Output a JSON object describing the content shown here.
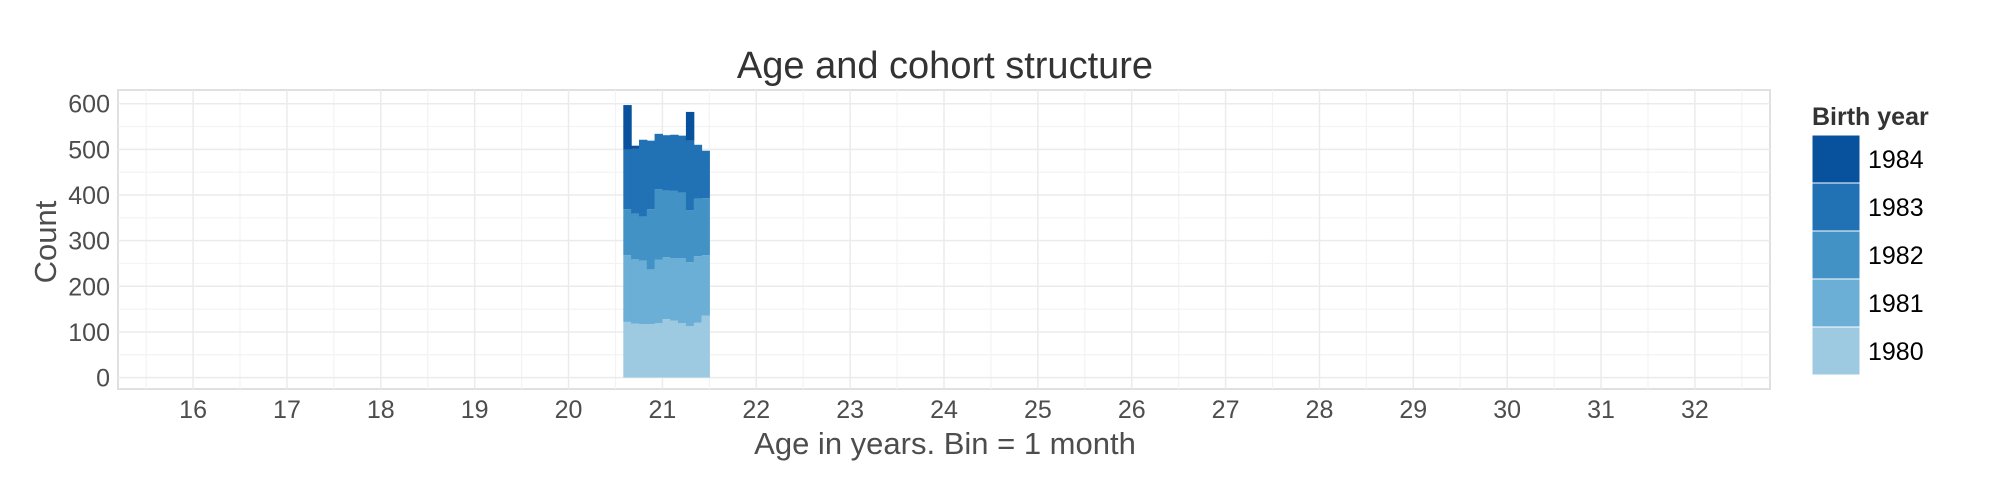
{
  "chart_data": {
    "type": "bar",
    "stacked": true,
    "title": "Age and cohort structure",
    "xlabel": "Age in years. Bin = 1 month",
    "ylabel": "Count",
    "xlim": [
      15.2,
      32.8
    ],
    "ylim": [
      -25,
      630
    ],
    "x_ticks": [
      "16",
      "17",
      "18",
      "19",
      "20",
      "21",
      "22",
      "23",
      "24",
      "25",
      "26",
      "27",
      "28",
      "29",
      "30",
      "31",
      "32"
    ],
    "y_ticks": [
      "0",
      "100",
      "200",
      "300",
      "400",
      "500",
      "600"
    ],
    "grid": true,
    "legend_position": "right",
    "bin_width_years": 0.0833,
    "x": [
      20.625,
      20.708,
      20.792,
      20.875,
      20.958,
      21.042,
      21.125,
      21.208,
      21.292,
      21.375,
      21.458
    ],
    "series": [
      {
        "name": "1980",
        "color": "#9ecae1",
        "values": [
          122,
          118,
          117,
          117,
          119,
          128,
          125,
          119,
          113,
          120,
          136
        ]
      },
      {
        "name": "1981",
        "color": "#6baed6",
        "values": [
          146,
          141,
          139,
          120,
          139,
          136,
          137,
          143,
          140,
          146,
          132
        ]
      },
      {
        "name": "1982",
        "color": "#4292c6",
        "values": [
          101,
          100,
          97,
          132,
          155,
          146,
          147,
          143,
          114,
          126,
          125
        ]
      },
      {
        "name": "1983",
        "color": "#2171b5",
        "values": [
          130,
          142,
          168,
          150,
          121,
          121,
          123,
          125,
          152,
          118,
          104
        ]
      },
      {
        "name": "1984",
        "color": "#08519c",
        "values": [
          98,
          7,
          0,
          0,
          0,
          0,
          0,
          0,
          63,
          0,
          0
        ]
      }
    ],
    "legend": {
      "title": "Birth year",
      "entries": [
        "1984",
        "1983",
        "1982",
        "1981",
        "1980"
      ],
      "colors": [
        "#08519c",
        "#2171b5",
        "#4292c6",
        "#6baed6",
        "#9ecae1"
      ]
    }
  }
}
